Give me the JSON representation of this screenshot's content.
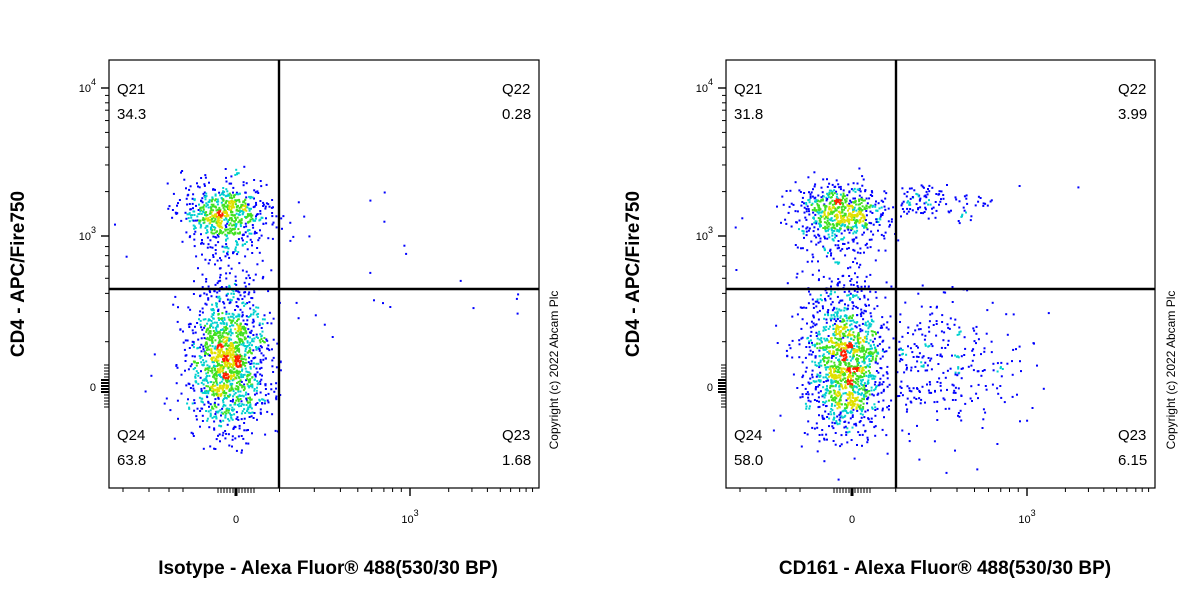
{
  "chart_data": [
    {
      "type": "scatter",
      "subtype": "flow-cytometry-density-dot-plot",
      "xlabel": "Isotype - Alexa Fluor® 488(530/30 BP)",
      "ylabel": "CD4 - APC/Fire750",
      "x_scale": "biexponential",
      "y_scale": "biexponential",
      "x_ticks": [
        {
          "label": "0",
          "value": 0
        },
        {
          "label": "10",
          "exp": "3",
          "value": 1000
        }
      ],
      "y_ticks": [
        {
          "label": "0",
          "value": 0
        },
        {
          "label": "10",
          "exp": "3",
          "value": 1000
        },
        {
          "label": "10",
          "exp": "4",
          "value": 10000
        }
      ],
      "quadrants": [
        {
          "name": "Q21",
          "value": "34.3",
          "position": "top-left"
        },
        {
          "name": "Q22",
          "value": "0.28",
          "position": "top-right"
        },
        {
          "name": "Q23",
          "value": "1.68",
          "position": "bottom-right"
        },
        {
          "name": "Q24",
          "value": "63.8",
          "position": "bottom-left"
        }
      ],
      "copyright": "Copyright (c) 2022 Abcam Plc",
      "colors": {
        "low": "#0000ff",
        "mid_low": "#00d0d0",
        "mid": "#40e020",
        "mid_high": "#e0e000",
        "high": "#ff2000"
      }
    },
    {
      "type": "scatter",
      "subtype": "flow-cytometry-density-dot-plot",
      "xlabel": "CD161 - Alexa Fluor® 488(530/30 BP)",
      "ylabel": "CD4 - APC/Fire750",
      "x_scale": "biexponential",
      "y_scale": "biexponential",
      "x_ticks": [
        {
          "label": "0",
          "value": 0
        },
        {
          "label": "10",
          "exp": "3",
          "value": 1000
        }
      ],
      "y_ticks": [
        {
          "label": "0",
          "value": 0
        },
        {
          "label": "10",
          "exp": "3",
          "value": 1000
        },
        {
          "label": "10",
          "exp": "4",
          "value": 10000
        }
      ],
      "quadrants": [
        {
          "name": "Q21",
          "value": "31.8",
          "position": "top-left"
        },
        {
          "name": "Q22",
          "value": "3.99",
          "position": "top-right"
        },
        {
          "name": "Q23",
          "value": "6.15",
          "position": "bottom-right"
        },
        {
          "name": "Q24",
          "value": "58.0",
          "position": "bottom-left"
        }
      ],
      "copyright": "Copyright (c) 2022 Abcam Plc",
      "colors": {
        "low": "#0000ff",
        "mid_low": "#00d0d0",
        "mid": "#40e020",
        "mid_high": "#e0e000",
        "high": "#ff2000"
      }
    }
  ]
}
